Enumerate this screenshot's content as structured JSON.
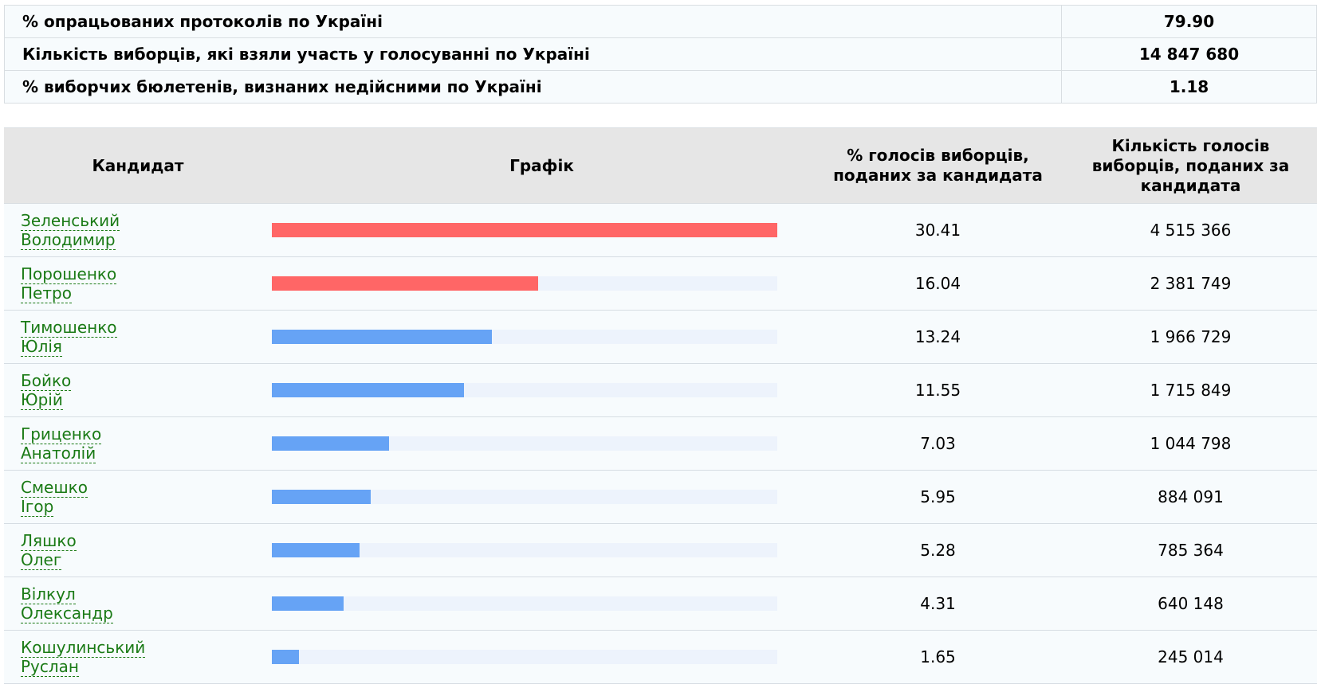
{
  "summary": [
    {
      "label": "% опрацьованих протоколів по Україні",
      "value": "79.90"
    },
    {
      "label": "Кількість виборців, які взяли участь у голосуванні по Україні",
      "value": "14 847 680"
    },
    {
      "label": "% виборчих бюлетенів, визнаних недійсними по Україні",
      "value": "1.18"
    }
  ],
  "headers": {
    "candidate": "Кандидат",
    "graph": "Графік",
    "percent_line1": "% голосів виборців,",
    "percent_line2": "поданих за кандидата",
    "count_line1": "Кількість голосів",
    "count_line2": "виборців, поданих за",
    "count_line3": "кандидата"
  },
  "colors": {
    "top_two": "#ff6666",
    "others": "#66a3f5",
    "track": "#edf3fc",
    "link": "#1a7a15"
  },
  "chart_data": {
    "type": "bar",
    "categories": [
      "Зеленський Володимир",
      "Порошенко Петро",
      "Тимошенко Юлія",
      "Бойко Юрій",
      "Гриценко Анатолій",
      "Смешко Ігор",
      "Ляшко Олег",
      "Вілкул Олександр",
      "Кошулинський Руслан"
    ],
    "values": [
      30.41,
      16.04,
      13.24,
      11.55,
      7.03,
      5.95,
      5.28,
      4.31,
      1.65
    ],
    "max": 30.41
  },
  "candidates": [
    {
      "surname": "Зеленський",
      "name": "Володимир",
      "percent": "30.41",
      "pct": 30.41,
      "votes": "4 515 366",
      "color": "#ff6666"
    },
    {
      "surname": "Порошенко",
      "name": "Петро",
      "percent": "16.04",
      "pct": 16.04,
      "votes": "2 381 749",
      "color": "#ff6666"
    },
    {
      "surname": "Тимошенко",
      "name": "Юлія",
      "percent": "13.24",
      "pct": 13.24,
      "votes": "1 966 729",
      "color": "#66a3f5"
    },
    {
      "surname": "Бойко",
      "name": "Юрій",
      "percent": "11.55",
      "pct": 11.55,
      "votes": "1 715 849",
      "color": "#66a3f5"
    },
    {
      "surname": "Гриценко",
      "name": "Анатолій",
      "percent": "7.03",
      "pct": 7.03,
      "votes": "1 044 798",
      "color": "#66a3f5"
    },
    {
      "surname": "Смешко",
      "name": "Ігор",
      "percent": "5.95",
      "pct": 5.95,
      "votes": "884 091",
      "color": "#66a3f5"
    },
    {
      "surname": "Ляшко",
      "name": "Олег",
      "percent": "5.28",
      "pct": 5.28,
      "votes": "785 364",
      "color": "#66a3f5"
    },
    {
      "surname": "Вілкул",
      "name": "Олександр",
      "percent": "4.31",
      "pct": 4.31,
      "votes": "640 148",
      "color": "#66a3f5"
    },
    {
      "surname": "Кошулинський",
      "name": "Руслан",
      "percent": "1.65",
      "pct": 1.65,
      "votes": "245 014",
      "color": "#66a3f5"
    }
  ]
}
